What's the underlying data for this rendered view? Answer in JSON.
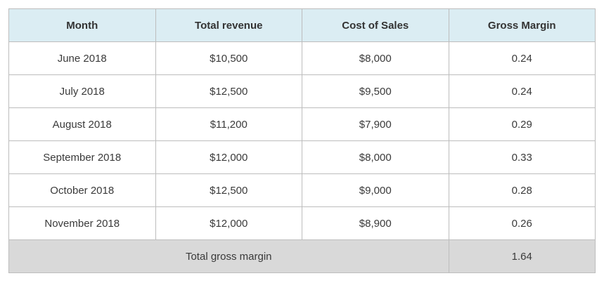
{
  "table": {
    "headers": [
      "Month",
      "Total revenue",
      "Cost of Sales",
      "Gross Margin"
    ],
    "rows": [
      [
        "June 2018",
        "$10,500",
        "$8,000",
        "0.24"
      ],
      [
        "July 2018",
        "$12,500",
        "$9,500",
        "0.24"
      ],
      [
        "August 2018",
        "$11,200",
        "$7,900",
        "0.29"
      ],
      [
        "September 2018",
        "$12,000",
        "$8,000",
        "0.33"
      ],
      [
        "October 2018",
        "$12,500",
        "$9,000",
        "0.28"
      ],
      [
        "November 2018",
        "$12,000",
        "$8,900",
        "0.26"
      ]
    ],
    "footer": {
      "label": "Total gross margin",
      "value": "1.64"
    }
  }
}
